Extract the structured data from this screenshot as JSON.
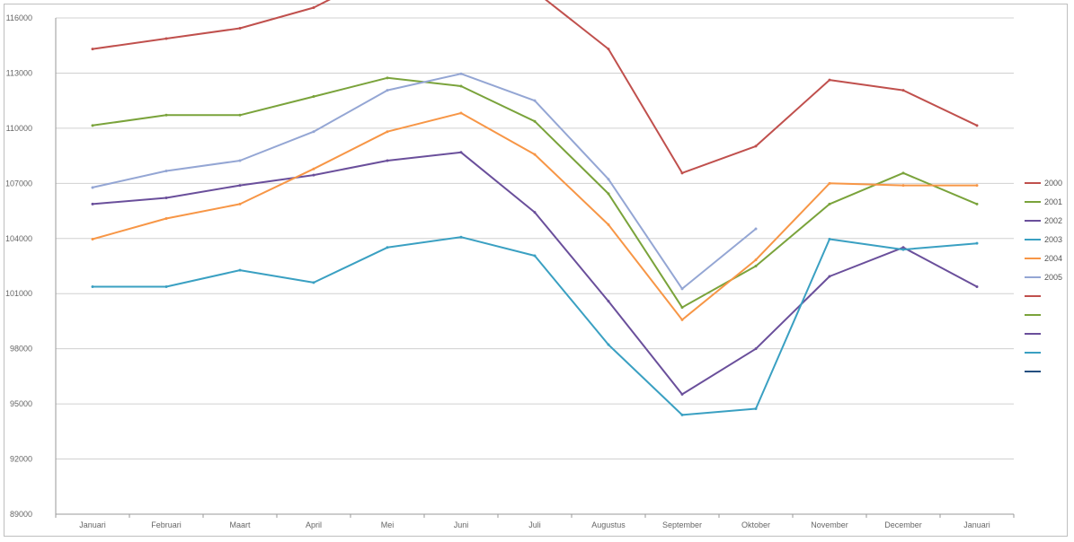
{
  "chart_data": {
    "type": "line",
    "title": "",
    "xlabel": "",
    "ylabel": "",
    "ylim": [
      89000,
      113000
    ],
    "y_ticks": [
      "89000",
      "92000",
      "95000",
      "98000",
      "101000",
      "104000",
      "107000",
      "110000",
      "113000",
      "116000"
    ],
    "grid": "horizontal",
    "legend_position": "right",
    "categories": [
      "Januari",
      "Februari",
      "Maart",
      "April",
      "Mei",
      "Juni",
      "Juli",
      "Augustus",
      "September",
      "Oktober",
      "November",
      "December",
      "Januari"
    ],
    "series": [
      {
        "name": "2000",
        "color": "#c0504d",
        "values": [
          111500,
          112000,
          112500,
          113500,
          115300,
          115300,
          114300,
          111500,
          105500,
          106800,
          110000,
          109500,
          107800
        ]
      },
      {
        "name": "2001",
        "color": "#7aa33b",
        "values": [
          107800,
          108300,
          108300,
          109200,
          110100,
          109700,
          108000,
          104500,
          99000,
          101000,
          104000,
          105500,
          104000
        ]
      },
      {
        "name": "2002",
        "color": "#6a4f9b",
        "values": [
          104000,
          104300,
          104900,
          105400,
          106100,
          106500,
          103600,
          99300,
          94800,
          97000,
          100500,
          101900,
          100000
        ]
      },
      {
        "name": "2003",
        "color": "#3aa0c2",
        "values": [
          100000,
          100000,
          100800,
          100200,
          101900,
          102400,
          101500,
          97200,
          93800,
          94100,
          102300,
          101800,
          102100
        ]
      },
      {
        "name": "2004",
        "color": "#f79646",
        "values": [
          102300,
          103300,
          104000,
          105700,
          107500,
          108400,
          106400,
          103000,
          98400,
          101300,
          105000,
          104900,
          104900
        ]
      },
      {
        "name": "2005",
        "color": "#94a6d4",
        "values": [
          104800,
          105600,
          106100,
          107500,
          109500,
          110300,
          109000,
          105200,
          99900,
          102800,
          null,
          null,
          null
        ]
      }
    ],
    "legend_extra_swatches": [
      "#c0504d",
      "#7aa33b",
      "#6a4f9b",
      "#3aa0c2",
      "#244f80"
    ]
  }
}
